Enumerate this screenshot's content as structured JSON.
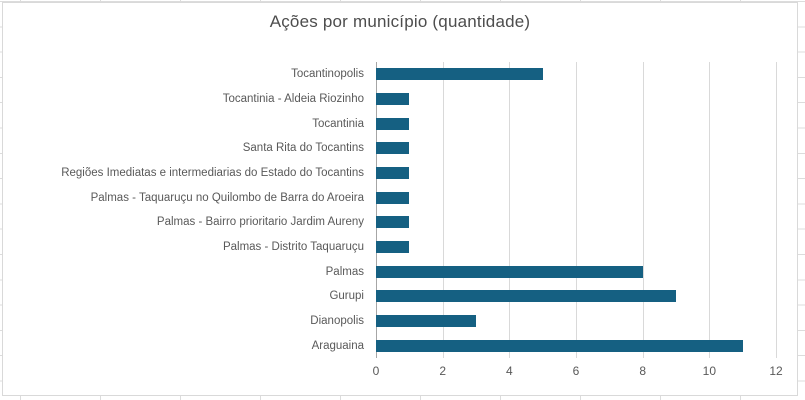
{
  "chart_data": {
    "type": "bar",
    "orientation": "horizontal",
    "title": "Ações por município (quantidade)",
    "categories": [
      "Tocantinopolis",
      "Tocantinia - Aldeia Riozinho",
      "Tocantinia",
      "Santa Rita do Tocantins",
      "Regiões Imediatas e intermediarias do Estado do Tocantins",
      "Palmas - Taquaruçu no Quilombo de Barra do Aroeira",
      "Palmas - Bairro prioritario Jardim Aureny",
      "Palmas - Distrito Taquaruçu",
      "Palmas",
      "Gurupi",
      "Dianopolis",
      "Araguaina"
    ],
    "values": [
      5,
      1,
      1,
      1,
      1,
      1,
      1,
      1,
      8,
      9,
      3,
      11
    ],
    "xlabel": "",
    "ylabel": "",
    "xlim": [
      0,
      12
    ],
    "x_ticks": [
      0,
      2,
      4,
      6,
      8,
      10,
      12
    ],
    "grid": true,
    "legend": "none",
    "colors": {
      "bar": "#156082",
      "gridline": "#D9D9D9",
      "axis_line": "#A6A6A6",
      "tick_text": "#595959",
      "category_text": "#595959",
      "title_text": "#4D4D4D",
      "chart_border": "#D9D9D9",
      "sheet_gridline": "#DCDCDC"
    }
  }
}
